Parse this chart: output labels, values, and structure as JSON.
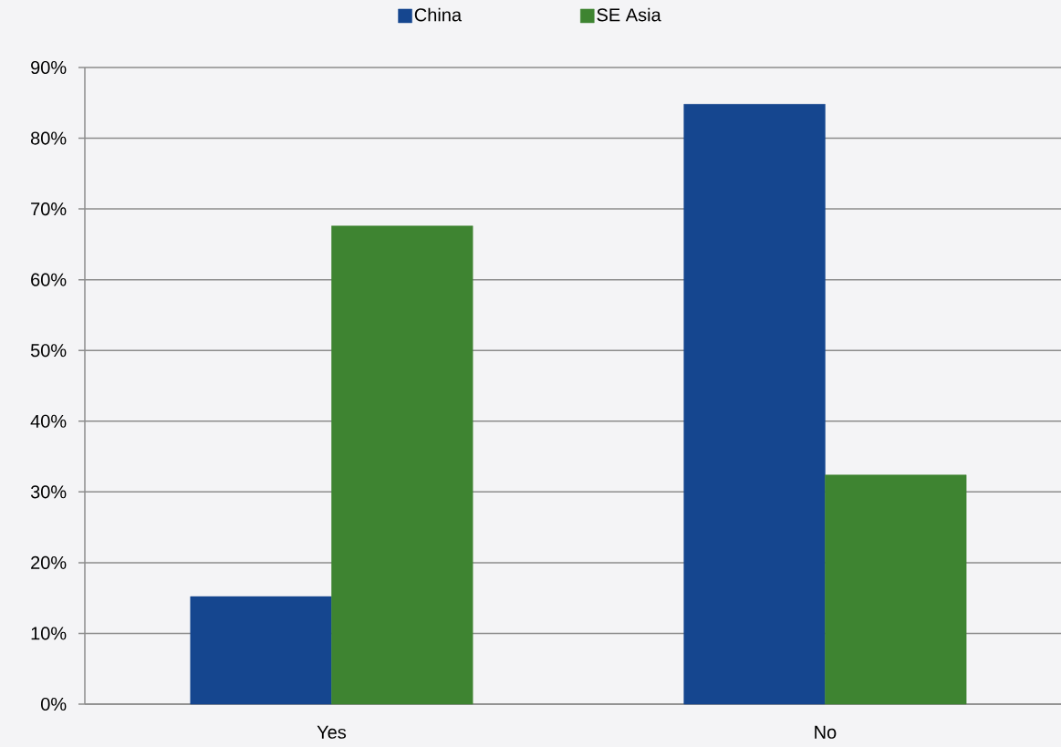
{
  "chart_data": {
    "type": "bar",
    "categories": [
      "Yes",
      "No"
    ],
    "series": [
      {
        "name": "China",
        "color": "#15468f",
        "values": [
          15.2,
          84.8
        ]
      },
      {
        "name": "SE Asia",
        "color": "#3e8431",
        "values": [
          67.6,
          32.4
        ]
      }
    ],
    "ylim": [
      0,
      90
    ],
    "yticks": [
      {
        "value": 0,
        "label": "0%"
      },
      {
        "value": 10,
        "label": "10%"
      },
      {
        "value": 20,
        "label": "20%"
      },
      {
        "value": 30,
        "label": "30%"
      },
      {
        "value": 40,
        "label": "40%"
      },
      {
        "value": 50,
        "label": "50%"
      },
      {
        "value": 60,
        "label": "60%"
      },
      {
        "value": 70,
        "label": "70%"
      },
      {
        "value": 80,
        "label": "80%"
      },
      {
        "value": 90,
        "label": "90%"
      }
    ],
    "grid": "y",
    "legend": "top"
  }
}
